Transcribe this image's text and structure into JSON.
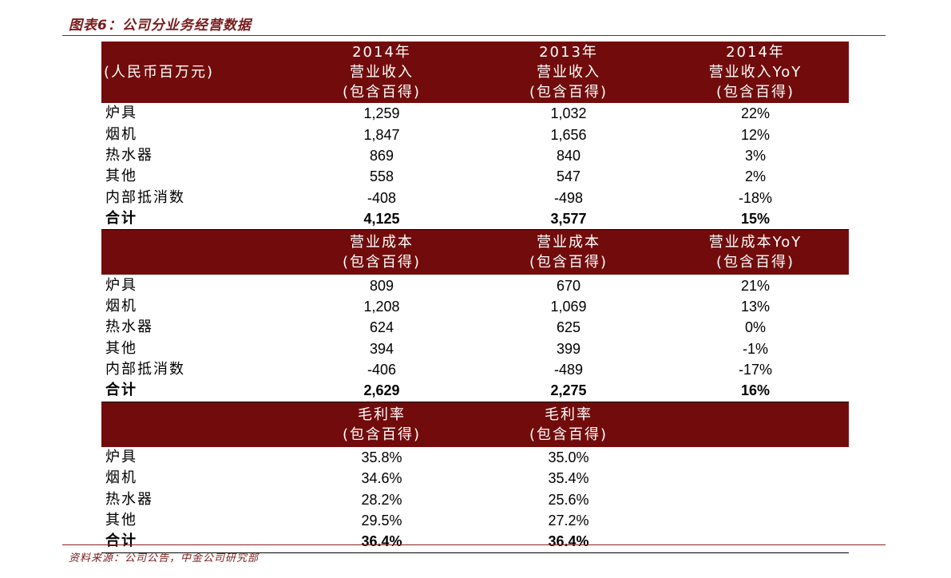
{
  "title": "图表6：公司分业务经营数据",
  "source": "资料来源：公司公告，中金公司研究部",
  "revenue": {
    "header": {
      "unit": "(人民币百万元)",
      "c1": [
        "2014年",
        "营业收入",
        "(包含百得)"
      ],
      "c2": [
        "2013年",
        "营业收入",
        "(包含百得)"
      ],
      "c3": [
        "2014年",
        "营业收入YoY",
        "(包含百得)"
      ]
    },
    "rows": [
      {
        "label": "炉具",
        "v1": "1,259",
        "v2": "1,032",
        "v3": "22%"
      },
      {
        "label": "烟机",
        "v1": "1,847",
        "v2": "1,656",
        "v3": "12%"
      },
      {
        "label": "热水器",
        "v1": "869",
        "v2": "840",
        "v3": "3%"
      },
      {
        "label": "其他",
        "v1": "558",
        "v2": "547",
        "v3": "2%"
      },
      {
        "label": "内部抵消数",
        "v1": "-408",
        "v2": "-498",
        "v3": "-18%"
      }
    ],
    "total": {
      "label": "合计",
      "v1": "4,125",
      "v2": "3,577",
      "v3": "15%"
    }
  },
  "cost": {
    "header": {
      "c1": [
        "营业成本",
        "(包含百得)"
      ],
      "c2": [
        "营业成本",
        "(包含百得)"
      ],
      "c3": [
        "营业成本YoY",
        "(包含百得)"
      ]
    },
    "rows": [
      {
        "label": "炉具",
        "v1": "809",
        "v2": "670",
        "v3": "21%"
      },
      {
        "label": "烟机",
        "v1": "1,208",
        "v2": "1,069",
        "v3": "13%"
      },
      {
        "label": "热水器",
        "v1": "624",
        "v2": "625",
        "v3": "0%"
      },
      {
        "label": "其他",
        "v1": "394",
        "v2": "399",
        "v3": "-1%"
      },
      {
        "label": "内部抵消数",
        "v1": "-406",
        "v2": "-489",
        "v3": "-17%"
      }
    ],
    "total": {
      "label": "合计",
      "v1": "2,629",
      "v2": "2,275",
      "v3": "16%"
    }
  },
  "margin": {
    "header": {
      "c1": [
        "毛利率",
        "(包含百得)"
      ],
      "c2": [
        "毛利率",
        "(包含百得)"
      ]
    },
    "rows": [
      {
        "label": "炉具",
        "v1": "35.8%",
        "v2": "35.0%"
      },
      {
        "label": "烟机",
        "v1": "34.6%",
        "v2": "35.4%"
      },
      {
        "label": "热水器",
        "v1": "28.2%",
        "v2": "25.6%"
      },
      {
        "label": "其他",
        "v1": "29.5%",
        "v2": "27.2%"
      }
    ],
    "total": {
      "label": "合计",
      "v1": "36.4%",
      "v2": "36.4%"
    }
  }
}
